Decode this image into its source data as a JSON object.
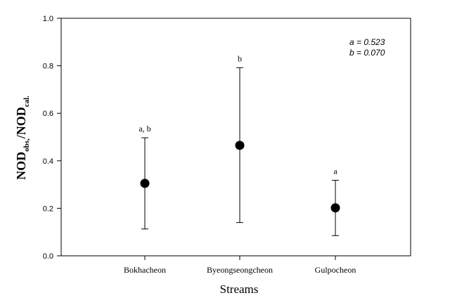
{
  "chart_data": {
    "type": "scatter",
    "title": "",
    "xlabel": "Streams",
    "ylabel": {
      "main": "NOD",
      "sub1": "obs,",
      "mid": "/NOD",
      "sub2": "cal."
    },
    "ylim": [
      0,
      1.0
    ],
    "yticks": [
      "0.0",
      "0.2",
      "0.4",
      "0.6",
      "0.8",
      "1.0"
    ],
    "grid": false,
    "legend": "none",
    "categories": [
      "Bokhacheon",
      "Byeongseongcheon",
      "Gulpocheon"
    ],
    "points": [
      {
        "category": "Bokhacheon",
        "mean": 0.305,
        "low": 0.113,
        "high": 0.497,
        "group_label": "a, b"
      },
      {
        "category": "Byeongseongcheon",
        "mean": 0.465,
        "low": 0.14,
        "high": 0.792,
        "group_label": "b"
      },
      {
        "category": "Gulpocheon",
        "mean": 0.202,
        "low": 0.085,
        "high": 0.318,
        "group_label": "a"
      }
    ],
    "annotations": [
      "a = 0.523",
      "b = 0.070"
    ],
    "colors": {
      "marker": "#000000",
      "axis": "#000000"
    }
  }
}
